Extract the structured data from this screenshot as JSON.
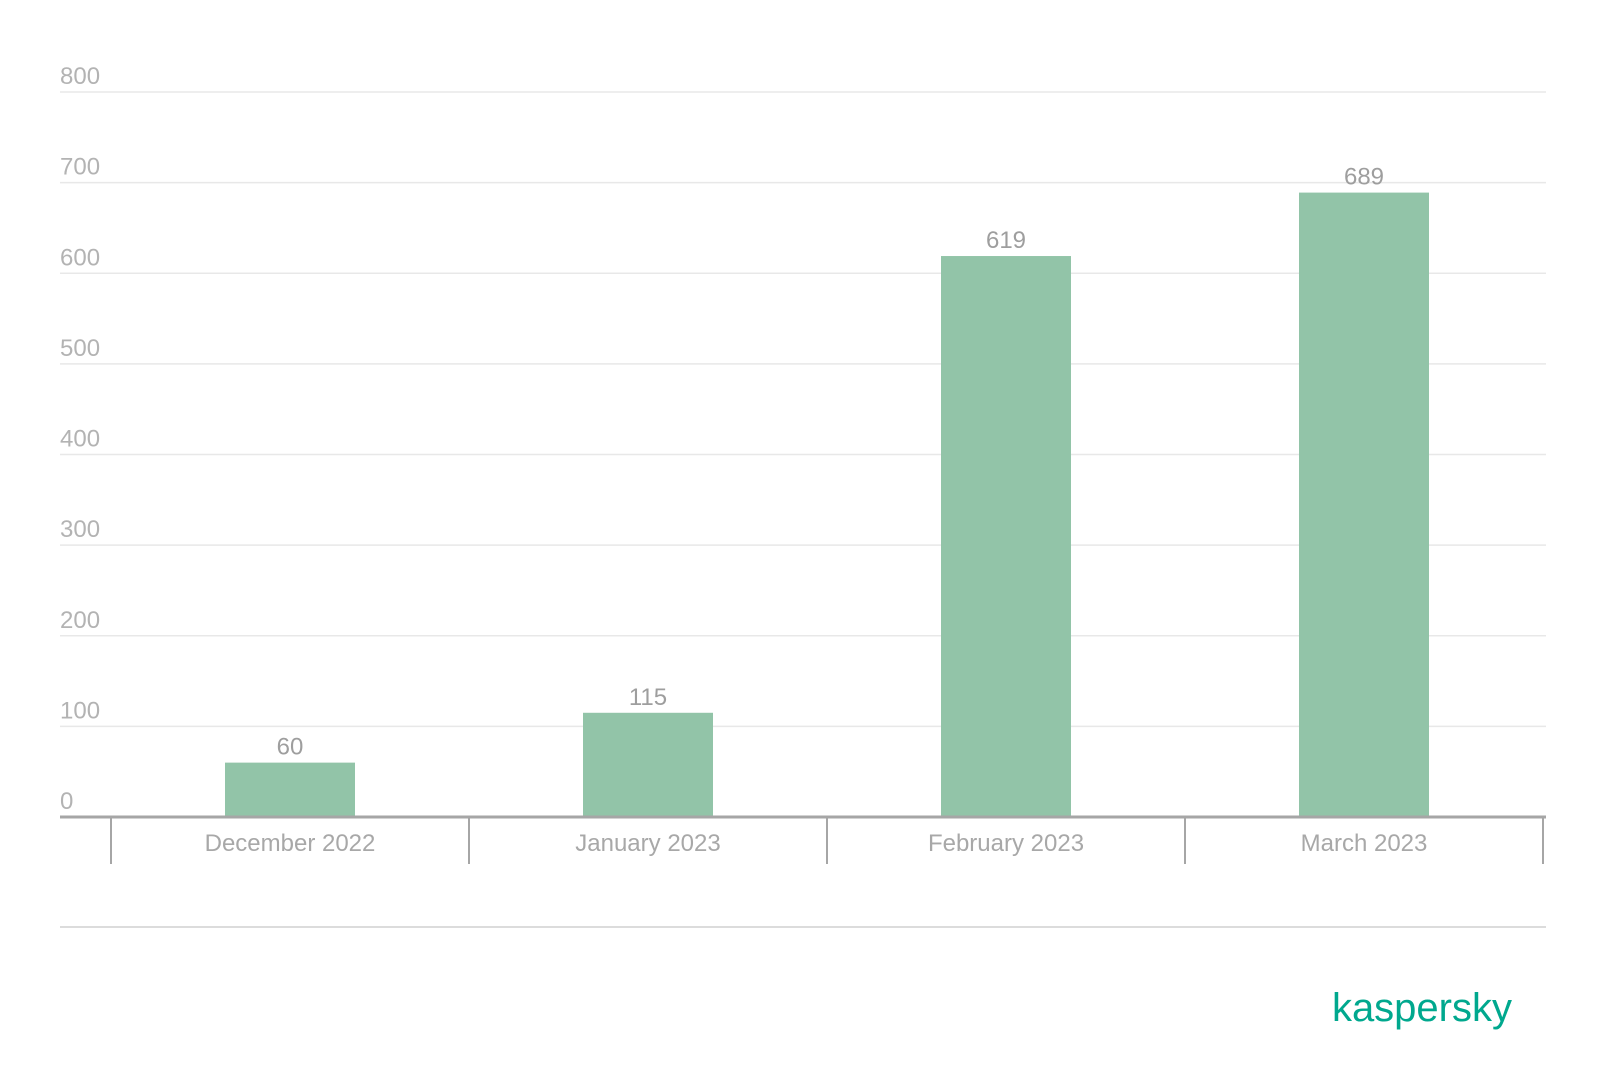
{
  "chart_data": {
    "type": "bar",
    "categories": [
      "December 2022",
      "January 2023",
      "February 2023",
      "March 2023"
    ],
    "values": [
      60,
      115,
      619,
      689
    ],
    "data_labels": [
      "60",
      "115",
      "619",
      "689"
    ],
    "y_ticks": [
      0,
      100,
      200,
      300,
      400,
      500,
      600,
      700,
      800
    ],
    "ylim": [
      0,
      800
    ],
    "grid": true,
    "legend": "none",
    "title": "",
    "xlabel": "",
    "ylabel": "",
    "bar_color": "#92c4a8",
    "grid_color": "#e8e8e8",
    "axis_color": "#a6a6a6"
  },
  "brand": {
    "logo_text": "kaspersky",
    "color": "#00a88e"
  }
}
